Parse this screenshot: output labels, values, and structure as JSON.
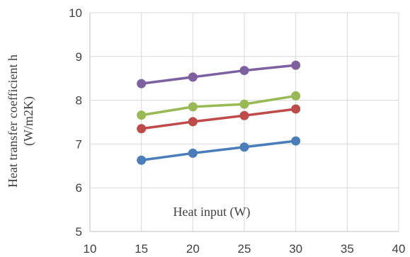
{
  "chart_data": {
    "type": "line",
    "ylabel_line1": "Heat transfer coefficient h",
    "ylabel_line2": "(W/m2K)",
    "xlabel": "Heat input (W)",
    "xlim": [
      10,
      40
    ],
    "ylim": [
      5,
      10
    ],
    "x_ticks": [
      "10",
      "15",
      "20",
      "25",
      "30",
      "35",
      "40"
    ],
    "y_ticks": [
      "5",
      "6",
      "7",
      "8",
      "9",
      "10"
    ],
    "grid": true,
    "x": [
      15,
      20,
      25,
      30
    ],
    "series": [
      {
        "color": "#4a7ebb",
        "values": [
          6.63,
          6.79,
          6.93,
          7.07
        ]
      },
      {
        "color": "#be4b48",
        "values": [
          7.35,
          7.51,
          7.65,
          7.8
        ]
      },
      {
        "color": "#98b954",
        "values": [
          7.66,
          7.85,
          7.91,
          8.1
        ]
      },
      {
        "color": "#7d60a0",
        "values": [
          8.38,
          8.53,
          8.68,
          8.8
        ]
      }
    ]
  }
}
